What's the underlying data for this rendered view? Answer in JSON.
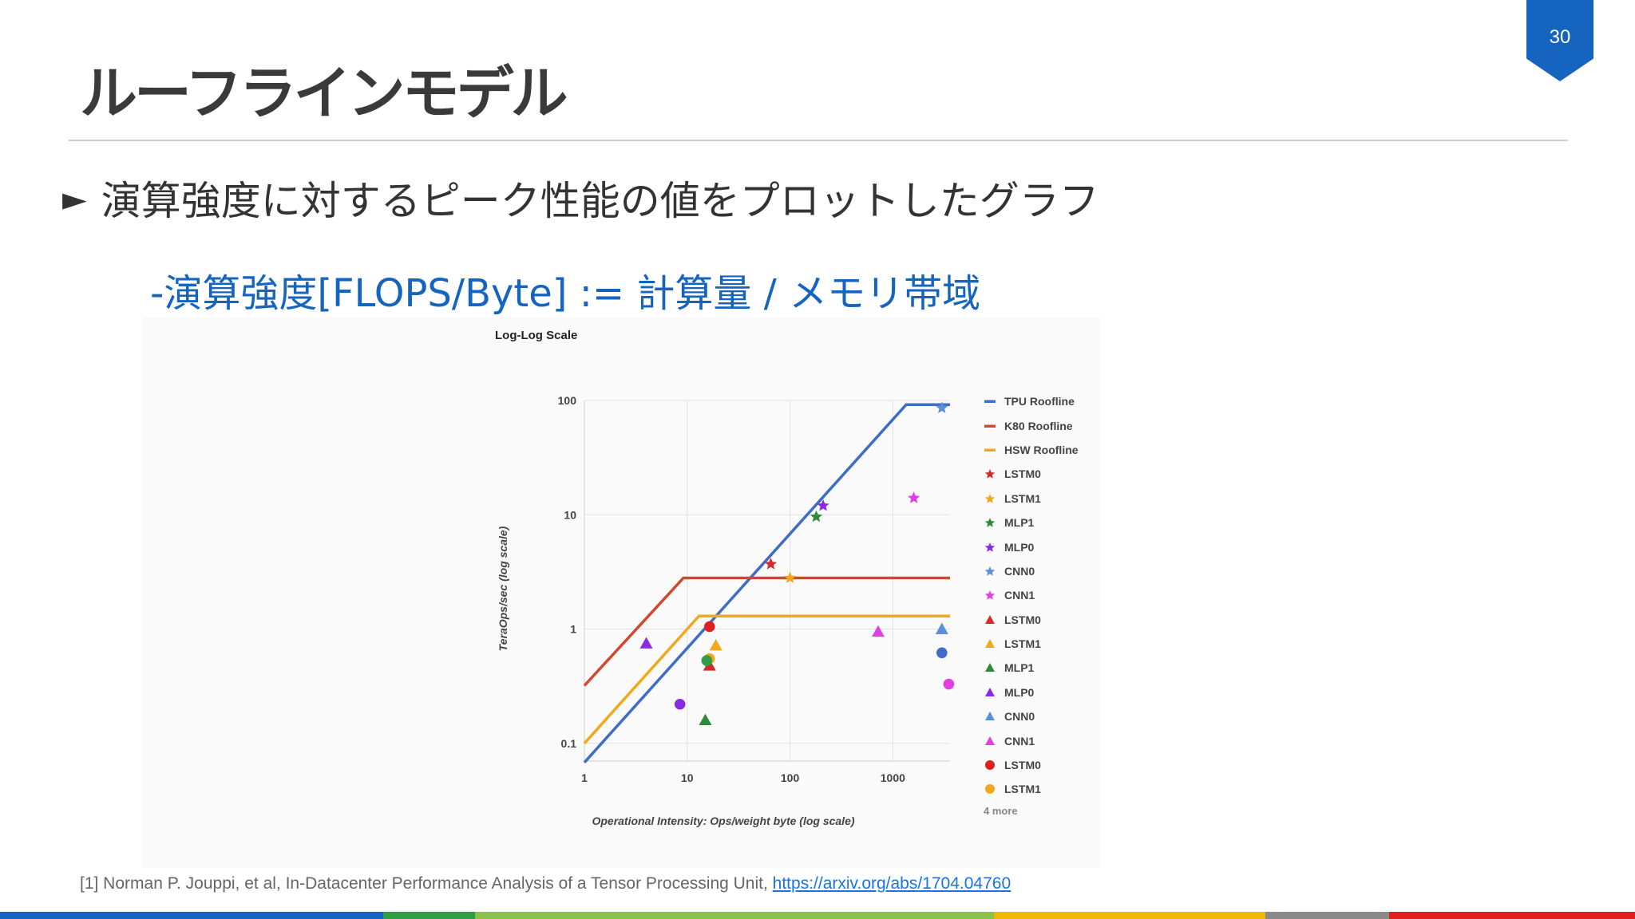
{
  "page_number": "30",
  "title": "ルーフラインモデル",
  "bullet": {
    "marker": "►",
    "text": "演算強度に対するピーク性能の値をプロットしたグラフ"
  },
  "sub_bullet": {
    "marker": "-",
    "text": "演算強度[FLOPS/Byte] := 計算量 / メモリ帯域"
  },
  "citation": {
    "text": "[1] Norman P. Jouppi, et al, In-Datacenter Performance Analysis of a Tensor Processing Unit,",
    "link": "https://arxiv.org/abs/1704.04760"
  },
  "footer_colors": [
    "#1565c0",
    "#2e9e44",
    "#8bc34a",
    "#f2b705",
    "#8a8a8a",
    "#e02020"
  ],
  "chart_data": {
    "type": "scatter",
    "title": "Log-Log Scale",
    "xlabel": "Operational Intensity: Ops/weight byte (log scale)",
    "ylabel": "TeraOps/sec (log scale)",
    "xscale": "log",
    "yscale": "log",
    "xlim": [
      1,
      3600
    ],
    "ylim": [
      0.07,
      100
    ],
    "xticks": [
      {
        "v": 1,
        "label": "1"
      },
      {
        "v": 10,
        "label": "10"
      },
      {
        "v": 100,
        "label": "100"
      },
      {
        "v": 1000,
        "label": "1000"
      }
    ],
    "yticks": [
      {
        "v": 0.1,
        "label": "0.1"
      },
      {
        "v": 1,
        "label": "1"
      },
      {
        "v": 10,
        "label": "10"
      },
      {
        "v": 100,
        "label": "100"
      }
    ],
    "grid": true,
    "legend_position": "right",
    "legend_more": "4 more",
    "rooflines": [
      {
        "name": "TPU Roofline",
        "color": "#3f6cc4",
        "points": [
          [
            1,
            0.068
          ],
          [
            1350,
            92
          ],
          [
            3600,
            92
          ]
        ]
      },
      {
        "name": "K80 Roofline",
        "color": "#d2472f",
        "points": [
          [
            1,
            0.32
          ],
          [
            9.2,
            2.8
          ],
          [
            3600,
            2.8
          ]
        ]
      },
      {
        "name": "HSW Roofline",
        "color": "#f2a81d",
        "points": [
          [
            1,
            0.1
          ],
          [
            13,
            1.3
          ],
          [
            3600,
            1.3
          ]
        ]
      }
    ],
    "points": [
      {
        "name": "LSTM0",
        "marker": "star",
        "color": "#d22b2b",
        "x": 65,
        "y": 3.7
      },
      {
        "name": "LSTM1",
        "marker": "star",
        "color": "#f2a81d",
        "x": 100,
        "y": 2.8
      },
      {
        "name": "MLP1",
        "marker": "star",
        "color": "#2e8b3a",
        "x": 180,
        "y": 9.6
      },
      {
        "name": "MLP0",
        "marker": "star",
        "color": "#8a2be2",
        "x": 210,
        "y": 12
      },
      {
        "name": "CNN0",
        "marker": "star",
        "color": "#5b8fd9",
        "x": 3000,
        "y": 86
      },
      {
        "name": "CNN1",
        "marker": "star",
        "color": "#e040e0",
        "x": 1600,
        "y": 14
      },
      {
        "name": "LSTM0",
        "marker": "triangle",
        "color": "#d22b2b",
        "x": 16.5,
        "y": 0.48
      },
      {
        "name": "LSTM1",
        "marker": "triangle",
        "color": "#f2a81d",
        "x": 19,
        "y": 0.72
      },
      {
        "name": "MLP1",
        "marker": "triangle",
        "color": "#2e8b3a",
        "x": 15,
        "y": 0.16
      },
      {
        "name": "MLP0",
        "marker": "triangle",
        "color": "#8a2be2",
        "x": 4,
        "y": 0.75
      },
      {
        "name": "CNN0",
        "marker": "triangle",
        "color": "#5b8fd9",
        "x": 3000,
        "y": 1.0
      },
      {
        "name": "CNN1",
        "marker": "triangle",
        "color": "#e040e0",
        "x": 720,
        "y": 0.95
      },
      {
        "name": "LSTM0",
        "marker": "circle",
        "color": "#e02020",
        "x": 16.5,
        "y": 1.05
      },
      {
        "name": "LSTM1",
        "marker": "circle",
        "color": "#f2a81d",
        "x": 16.5,
        "y": 0.55
      },
      {
        "name": "",
        "marker": "circle",
        "color": "#2e9e44",
        "x": 15.5,
        "y": 0.53
      },
      {
        "name": "",
        "marker": "circle",
        "color": "#8a2be2",
        "x": 8.5,
        "y": 0.22
      },
      {
        "name": "",
        "marker": "circle",
        "color": "#3f6cc4",
        "x": 3000,
        "y": 0.62
      },
      {
        "name": "",
        "marker": "circle",
        "color": "#e040e0",
        "x": 3500,
        "y": 0.33
      }
    ],
    "legend": [
      {
        "label": "TPU Roofline",
        "marker": "line",
        "color": "#3f6cc4"
      },
      {
        "label": "K80 Roofline",
        "marker": "line",
        "color": "#d2472f"
      },
      {
        "label": "HSW Roofline",
        "marker": "line",
        "color": "#f2a81d"
      },
      {
        "label": "LSTM0",
        "marker": "star",
        "color": "#d22b2b"
      },
      {
        "label": "LSTM1",
        "marker": "star",
        "color": "#f2a81d"
      },
      {
        "label": "MLP1",
        "marker": "star",
        "color": "#2e8b3a"
      },
      {
        "label": "MLP0",
        "marker": "star",
        "color": "#8a2be2"
      },
      {
        "label": "CNN0",
        "marker": "star",
        "color": "#5b8fd9"
      },
      {
        "label": "CNN1",
        "marker": "star",
        "color": "#e040e0"
      },
      {
        "label": "LSTM0",
        "marker": "triangle",
        "color": "#d22b2b"
      },
      {
        "label": "LSTM1",
        "marker": "triangle",
        "color": "#f2a81d"
      },
      {
        "label": "MLP1",
        "marker": "triangle",
        "color": "#2e8b3a"
      },
      {
        "label": "MLP0",
        "marker": "triangle",
        "color": "#8a2be2"
      },
      {
        "label": "CNN0",
        "marker": "triangle",
        "color": "#5b8fd9"
      },
      {
        "label": "CNN1",
        "marker": "triangle",
        "color": "#e040e0"
      },
      {
        "label": "LSTM0",
        "marker": "circle",
        "color": "#e02020"
      },
      {
        "label": "LSTM1",
        "marker": "circle",
        "color": "#f2a81d"
      }
    ]
  }
}
